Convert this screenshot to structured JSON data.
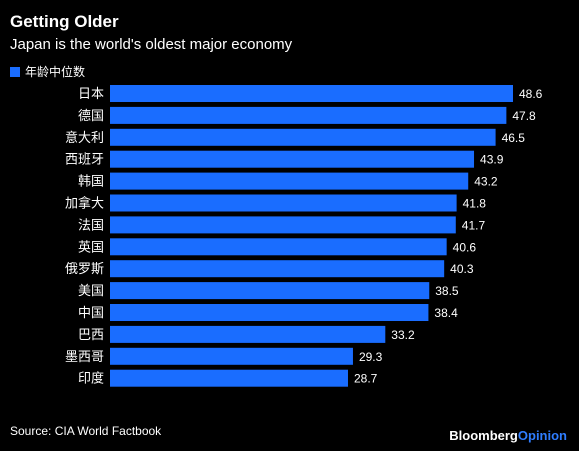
{
  "header": {
    "title": "Getting Older",
    "subtitle": "Japan is the world's oldest major economy"
  },
  "footer": {
    "source": "Source: CIA World Factbook",
    "brand_main": "Bloomberg",
    "brand_accent": "Opinion"
  },
  "colors": {
    "bar": "#1a6dff",
    "background": "#000000",
    "text": "#ffffff"
  },
  "chart_data": {
    "type": "bar",
    "orientation": "horizontal",
    "series": [
      {
        "name": "年龄中位数",
        "values": [
          48.6,
          47.8,
          46.5,
          43.9,
          43.2,
          41.8,
          41.7,
          40.6,
          40.3,
          38.5,
          38.4,
          33.2,
          29.3,
          28.7
        ]
      }
    ],
    "categories": [
      "日本",
      "德国",
      "意大利",
      "西班牙",
      "韩国",
      "加拿大",
      "法国",
      "英国",
      "俄罗斯",
      "美国",
      "中国",
      "巴西",
      "墨西哥",
      "印度"
    ],
    "data_labels": [
      "48.6",
      "47.8",
      "46.5",
      "43.9",
      "43.2",
      "41.8",
      "41.7",
      "40.6",
      "40.3",
      "38.5",
      "38.4",
      "33.2",
      "29.3",
      "28.7"
    ],
    "xlim": [
      0,
      48.6
    ],
    "grid": false,
    "legend_position": "top-left"
  }
}
